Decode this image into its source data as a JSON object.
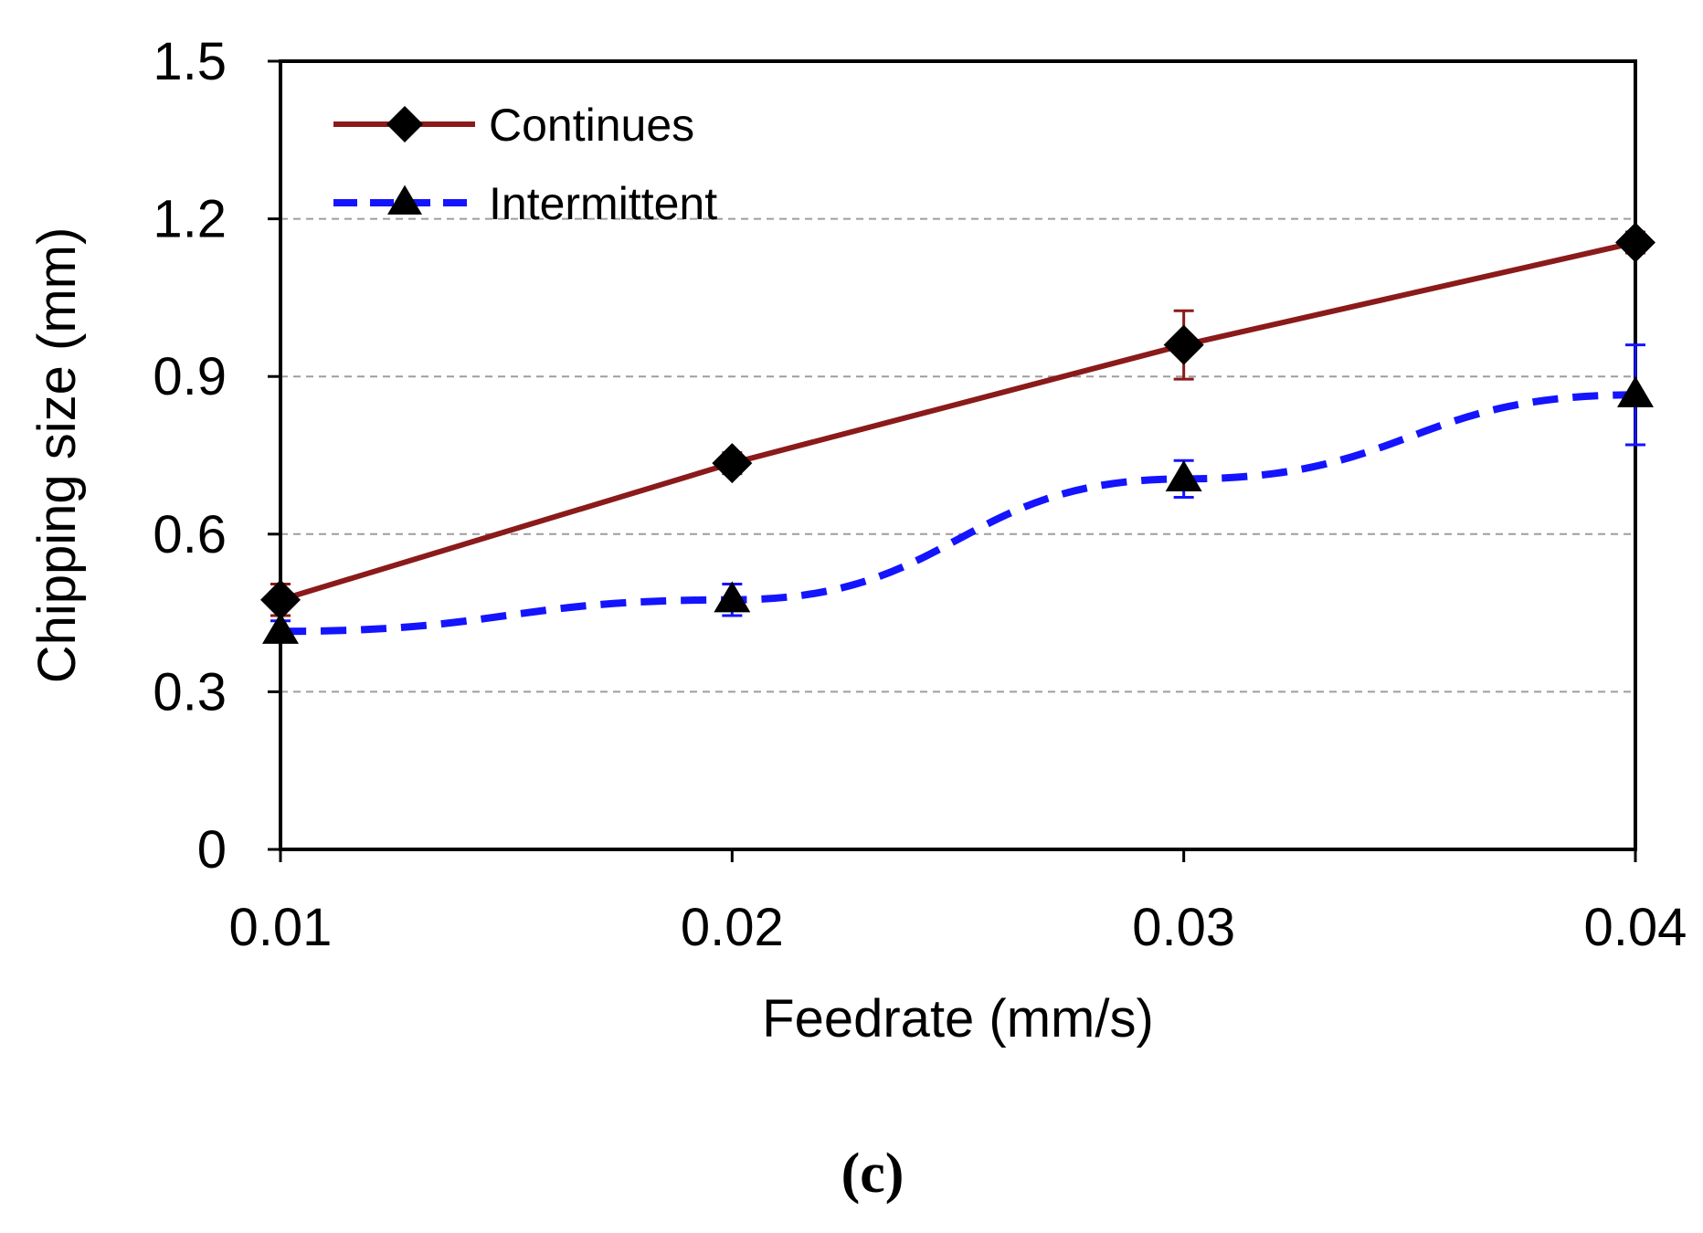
{
  "chart_data": {
    "type": "line",
    "title": "",
    "xlabel": "Feedrate (mm/s)",
    "ylabel": "Chipping size (mm)",
    "x": [
      0.01,
      0.02,
      0.03,
      0.04
    ],
    "x_tick_labels": [
      "0.01",
      "0.02",
      "0.03",
      "0.04"
    ],
    "y_ticks": [
      0,
      0.3,
      0.6,
      0.9,
      1.2,
      1.5
    ],
    "y_tick_labels": [
      "0",
      "0.3",
      "0.6",
      "0.9",
      "1.2",
      "1.5"
    ],
    "ylim": [
      0,
      1.5
    ],
    "grid": true,
    "legend_position": "top-left",
    "series": [
      {
        "name": "Continues",
        "values": [
          0.475,
          0.735,
          0.96,
          1.155
        ],
        "errors": [
          0.03,
          0.02,
          0.065,
          0.02
        ],
        "color": "#8b1a1a",
        "marker": "diamond",
        "line_style": "solid"
      },
      {
        "name": "Intermittent",
        "values": [
          0.415,
          0.475,
          0.705,
          0.865
        ],
        "errors": [
          0.02,
          0.03,
          0.035,
          0.095
        ],
        "color": "#1414ff",
        "marker": "triangle",
        "line_style": "dashed"
      }
    ],
    "panel_label": "(c)"
  }
}
